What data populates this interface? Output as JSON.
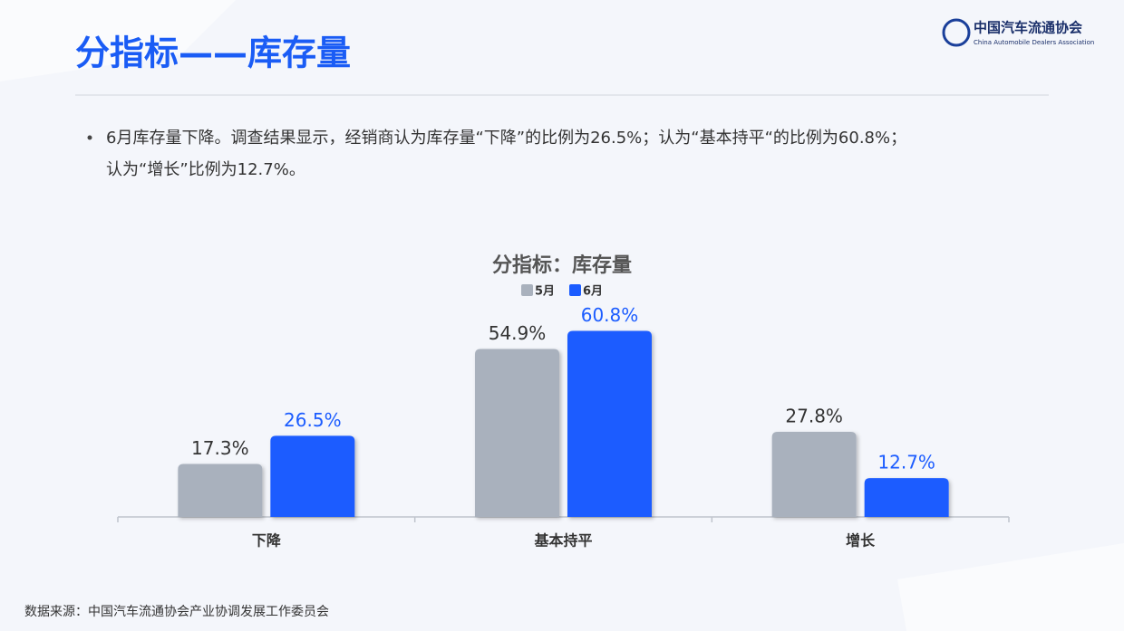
{
  "slide_title": "分指标——库存量",
  "logo": {
    "name": "中国汽车流通协会",
    "english": "China Automobile Dealers Association"
  },
  "bullet_lines": [
    "6月库存量下降。调查结果显示，经销商认为库存量“下降”的比例为26.5%；认为“基本持平“的比例为60.8%；",
    "认为“增长”比例为12.7%。"
  ],
  "source": "数据来源：中国汽车流通协会产业协调发展工作委员会",
  "chart_data": {
    "type": "bar",
    "title": "分指标：库存量",
    "categories": [
      "下降",
      "基本持平",
      "增长"
    ],
    "series": [
      {
        "name": "5月",
        "color": "#a9b1bd",
        "values": [
          17.3,
          54.9,
          27.8
        ],
        "value_labels": [
          "17.3%",
          "54.9%",
          "27.8%"
        ]
      },
      {
        "name": "6月",
        "color": "#1b5cff",
        "values": [
          26.5,
          60.8,
          12.7
        ],
        "value_labels": [
          "26.5%",
          "60.8%",
          "12.7%"
        ]
      }
    ]
  }
}
